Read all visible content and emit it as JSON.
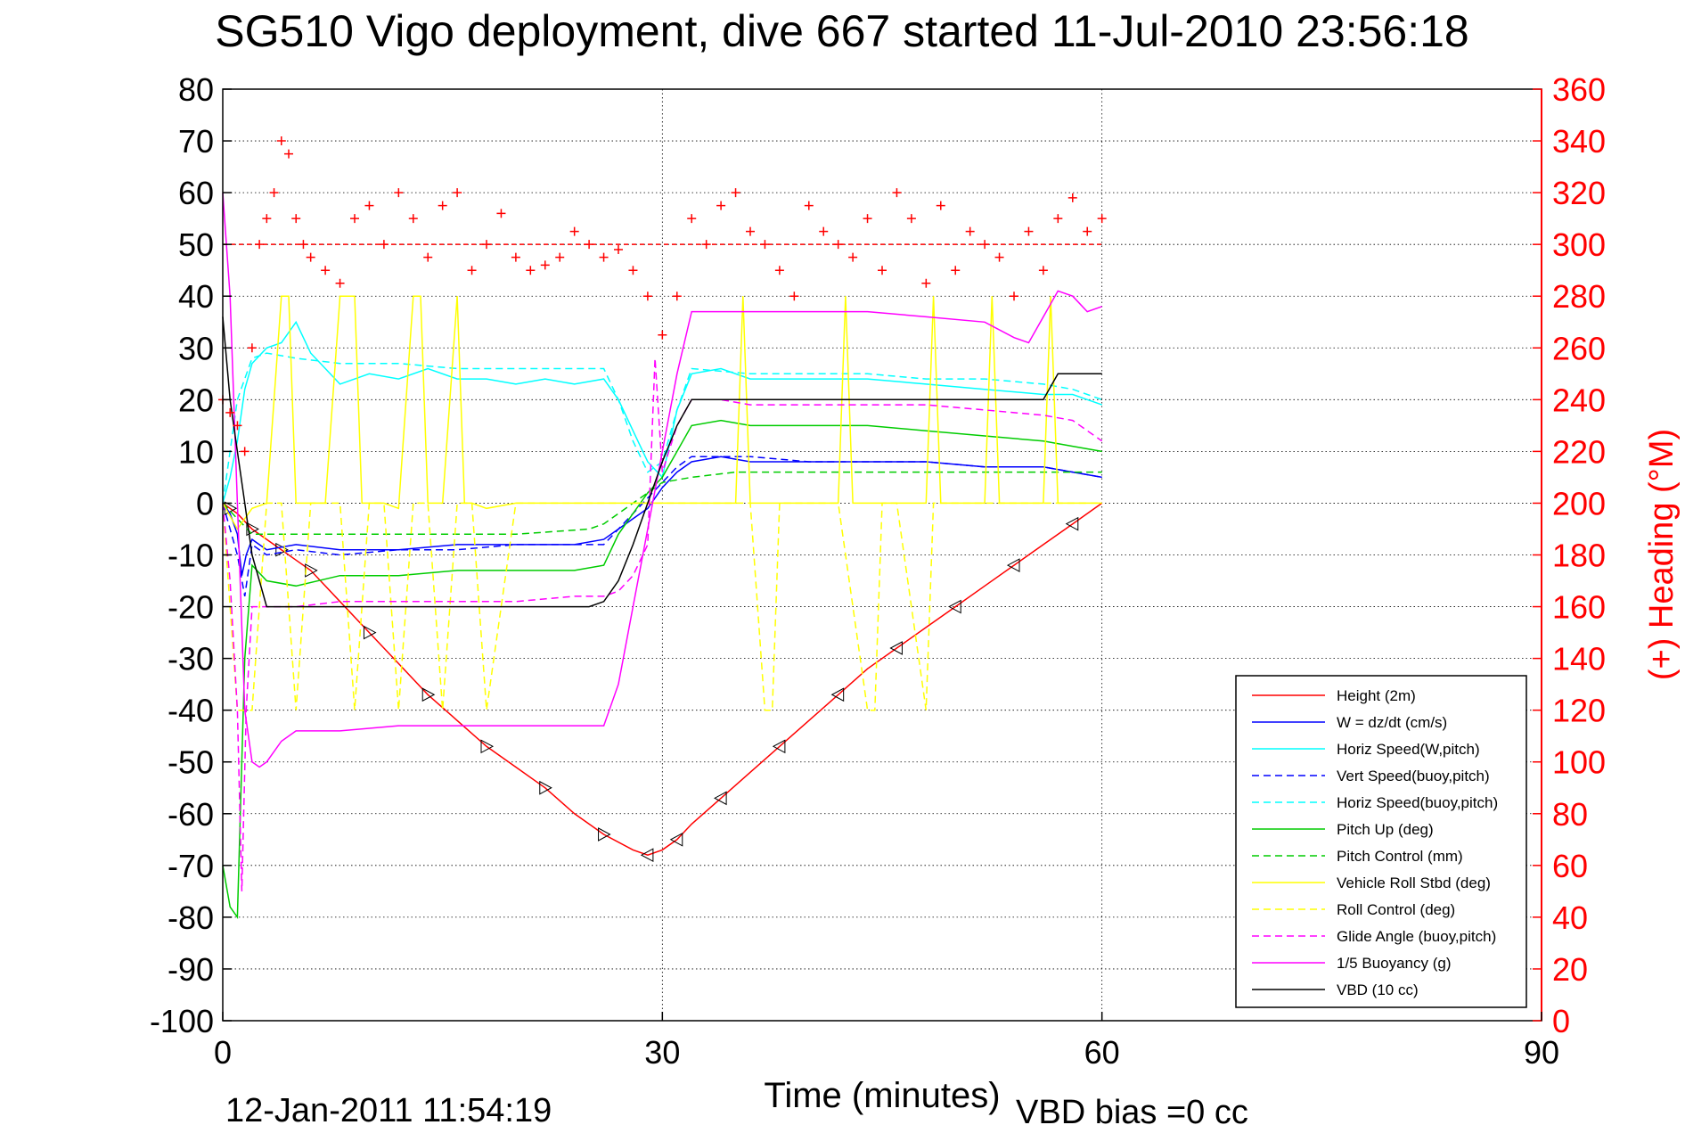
{
  "title": "SG510 Vigo deployment, dive 667 started 11-Jul-2010 23:56:18",
  "footer": {
    "timestamp": "12-Jan-2011 11:54:19",
    "vbd_bias": "VBD bias =0 cc"
  },
  "colors": {
    "axis_right": "#ff0000",
    "background": "#ffffff",
    "grid": "#000000"
  },
  "chart_data": {
    "type": "line",
    "xlabel": "Time (minutes)",
    "ylabel": "",
    "y2label": "(+) Heading (°M)",
    "xlim": [
      0,
      90
    ],
    "ylim": [
      -100,
      80
    ],
    "y2lim": [
      0,
      360
    ],
    "xticks": [
      "0",
      "30",
      "60",
      "90"
    ],
    "yticks": [
      "80",
      "70",
      "60",
      "50",
      "40",
      "30",
      "20",
      "10",
      "0",
      "-10",
      "-20",
      "-30",
      "-40",
      "-50",
      "-60",
      "-70",
      "-80",
      "-90",
      "-100"
    ],
    "y2ticks": [
      "360",
      "340",
      "320",
      "300",
      "280",
      "260",
      "240",
      "220",
      "200",
      "180",
      "160",
      "140",
      "120",
      "100",
      "80",
      "60",
      "40",
      "20",
      "0"
    ],
    "grid": "dotted, x at 30 and 60, y every 10",
    "legend_position": "lower-right",
    "legend": [
      {
        "name": "Height (2m)",
        "color": "#ff0000",
        "dash": "solid"
      },
      {
        "name": "W = dz/dt (cm/s)",
        "color": "#0000ff",
        "dash": "solid"
      },
      {
        "name": "Horiz Speed(W,pitch)",
        "color": "#00ffff",
        "dash": "solid"
      },
      {
        "name": "Vert Speed(buoy,pitch)",
        "color": "#0000ff",
        "dash": "dashed"
      },
      {
        "name": "Horiz Speed(buoy,pitch)",
        "color": "#00ffff",
        "dash": "dashed"
      },
      {
        "name": "Pitch Up (deg)",
        "color": "#00cc00",
        "dash": "solid"
      },
      {
        "name": "Pitch Control (mm)",
        "color": "#00cc00",
        "dash": "dashed"
      },
      {
        "name": "Vehicle Roll Stbd (deg)",
        "color": "#ffff00",
        "dash": "solid"
      },
      {
        "name": "Roll Control (deg)",
        "color": "#ffff00",
        "dash": "dashed"
      },
      {
        "name": "Glide Angle (buoy,pitch)",
        "color": "#ff00ff",
        "dash": "dashed"
      },
      {
        "name": "1/5 Buoyancy (g)",
        "color": "#ff00ff",
        "dash": "solid"
      },
      {
        "name": "VBD (10 cc)",
        "color": "#000000",
        "dash": "solid"
      }
    ],
    "series": [
      {
        "name": "Height (2m)",
        "axis": "left",
        "x": [
          0,
          0.5,
          1,
          2,
          3,
          4,
          5,
          6,
          8,
          10,
          12,
          14,
          16,
          18,
          20,
          22,
          24,
          26,
          28,
          29,
          30,
          31,
          32,
          34,
          36,
          38,
          40,
          42,
          44,
          46,
          48,
          50,
          52,
          54,
          56,
          58,
          60
        ],
        "y": [
          0,
          -1,
          -2,
          -5,
          -7,
          -9,
          -11,
          -13,
          -19,
          -25,
          -31,
          -37,
          -42,
          -47,
          -51,
          -55,
          -60,
          -64,
          -67,
          -68,
          -67,
          -65,
          -62,
          -57,
          -52,
          -47,
          -42,
          -37,
          -32,
          -28,
          -24,
          -20,
          -16,
          -12,
          -8,
          -4,
          0
        ]
      },
      {
        "name": "W = dz/dt (cm/s)",
        "axis": "left",
        "x": [
          0,
          0.5,
          1,
          1.3,
          1.6,
          2,
          3,
          5,
          8,
          12,
          16,
          20,
          24,
          26,
          27,
          28,
          29,
          30,
          31,
          32,
          34,
          36,
          40,
          44,
          48,
          52,
          56,
          58,
          60
        ],
        "y": [
          0,
          -2,
          -6,
          -14,
          -10,
          -7,
          -9,
          -8,
          -9,
          -9,
          -8,
          -8,
          -8,
          -7,
          -5,
          -3,
          -1,
          3,
          6,
          8,
          9,
          8,
          8,
          8,
          8,
          7,
          7,
          6,
          5
        ]
      },
      {
        "name": "Horiz Speed(W,pitch)",
        "axis": "left",
        "x": [
          0,
          0.5,
          1,
          1.5,
          2,
          3,
          4,
          5,
          6,
          8,
          10,
          12,
          14,
          16,
          18,
          20,
          22,
          24,
          26,
          27,
          28,
          29,
          30,
          31,
          32,
          34,
          36,
          40,
          44,
          48,
          52,
          56,
          58,
          60
        ],
        "y": [
          0,
          5,
          12,
          22,
          27,
          30,
          31,
          35,
          29,
          23,
          25,
          24,
          26,
          24,
          24,
          23,
          24,
          23,
          24,
          20,
          14,
          8,
          5,
          18,
          25,
          26,
          24,
          24,
          24,
          23,
          22,
          21,
          21,
          19
        ]
      },
      {
        "name": "Vert Speed(buoy,pitch)",
        "axis": "left",
        "x": [
          0,
          1,
          1.5,
          2,
          3,
          5,
          8,
          12,
          16,
          20,
          24,
          26,
          27,
          28,
          29,
          30,
          31,
          32,
          36,
          40,
          44,
          48,
          52,
          56,
          60
        ],
        "y": [
          0,
          -10,
          -18,
          -8,
          -10,
          -9,
          -10,
          -9,
          -9,
          -8,
          -8,
          -8,
          -5,
          -2,
          1,
          4,
          7,
          9,
          9,
          8,
          8,
          8,
          7,
          7,
          5
        ]
      },
      {
        "name": "Horiz Speed(buoy,pitch)",
        "axis": "left",
        "x": [
          0,
          1,
          2,
          3,
          5,
          8,
          12,
          16,
          20,
          24,
          26,
          27,
          28,
          29,
          30,
          31,
          32,
          36,
          40,
          44,
          48,
          52,
          56,
          58,
          60
        ],
        "y": [
          0,
          20,
          28,
          29,
          28,
          27,
          27,
          26,
          26,
          26,
          26,
          20,
          12,
          6,
          8,
          18,
          26,
          25,
          25,
          25,
          24,
          24,
          23,
          22,
          20
        ]
      },
      {
        "name": "Pitch Up (deg)",
        "axis": "left",
        "x": [
          0,
          0.5,
          1,
          1.2,
          1.5,
          2,
          3,
          5,
          8,
          12,
          16,
          20,
          24,
          26,
          27,
          28,
          29,
          30,
          31,
          32,
          34,
          36,
          40,
          44,
          48,
          52,
          56,
          58,
          60
        ],
        "y": [
          -70,
          -78,
          -80,
          -60,
          -30,
          -12,
          -15,
          -16,
          -14,
          -14,
          -13,
          -13,
          -13,
          -12,
          -6,
          -2,
          2,
          5,
          10,
          15,
          16,
          15,
          15,
          15,
          14,
          13,
          12,
          11,
          10
        ]
      },
      {
        "name": "Pitch Control (mm)",
        "axis": "left",
        "x": [
          0,
          1,
          2,
          5,
          10,
          15,
          20,
          25,
          26,
          27,
          28,
          29,
          30,
          32,
          35,
          40,
          45,
          50,
          55,
          58,
          60
        ],
        "y": [
          0,
          -3,
          -6,
          -6,
          -6,
          -6,
          -6,
          -5,
          -4,
          -2,
          0,
          2,
          4,
          5,
          6,
          6,
          6,
          6,
          6,
          6,
          6
        ]
      },
      {
        "name": "Vehicle Roll Stbd (deg)",
        "axis": "left",
        "x": [
          0,
          1,
          2,
          3,
          4,
          4.5,
          5,
          6,
          7,
          8,
          9,
          9.5,
          10,
          11,
          12,
          13,
          13.5,
          14,
          15,
          16,
          16.5,
          17,
          18,
          20,
          22,
          24,
          26,
          28,
          30,
          32,
          34,
          35,
          35.5,
          36,
          38,
          40,
          42,
          42.5,
          43,
          44,
          46,
          48,
          48.5,
          49,
          50,
          52,
          52.5,
          53,
          54,
          56,
          56.5,
          57,
          58,
          60
        ],
        "y": [
          0,
          -5,
          -1,
          0,
          40,
          40,
          0,
          0,
          0,
          40,
          40,
          0,
          0,
          0,
          -1,
          40,
          40,
          0,
          0,
          40,
          0,
          0,
          -1,
          0,
          0,
          0,
          0,
          0,
          0,
          0,
          0,
          0,
          40,
          0,
          0,
          0,
          0,
          40,
          0,
          0,
          0,
          0,
          40,
          0,
          0,
          0,
          40,
          0,
          0,
          0,
          40,
          0,
          0,
          0
        ]
      },
      {
        "name": "Roll Control (deg)",
        "axis": "left",
        "x": [
          0,
          1,
          2,
          3,
          4,
          5,
          6,
          7,
          8,
          9,
          10,
          11,
          12,
          13,
          14,
          15,
          16,
          17,
          18,
          20,
          22,
          24,
          26,
          28,
          30,
          32,
          34,
          36,
          37,
          37.5,
          38,
          40,
          42,
          44,
          44.5,
          45,
          46,
          48,
          48.5,
          49,
          50,
          52,
          54,
          56,
          58,
          60
        ],
        "y": [
          0,
          -40,
          -40,
          0,
          0,
          -40,
          0,
          0,
          0,
          -40,
          0,
          0,
          -40,
          0,
          0,
          -40,
          0,
          0,
          -40,
          0,
          0,
          0,
          0,
          0,
          0,
          0,
          0,
          0,
          -40,
          -40,
          0,
          0,
          0,
          -40,
          -40,
          0,
          0,
          -40,
          0,
          0,
          0,
          0,
          0,
          0,
          0,
          0
        ]
      },
      {
        "name": "Glide Angle (buoy,pitch)",
        "axis": "left",
        "x": [
          0,
          0.5,
          1,
          1.3,
          1.6,
          2,
          3,
          5,
          8,
          12,
          16,
          20,
          24,
          26,
          27,
          28,
          29,
          29.5,
          30,
          31,
          32,
          34,
          36,
          40,
          44,
          48,
          52,
          56,
          58,
          60
        ],
        "y": [
          0,
          -15,
          -40,
          -75,
          -40,
          -20,
          -20,
          -20,
          -19,
          -19,
          -19,
          -19,
          -18,
          -18,
          -17,
          -14,
          -8,
          28,
          6,
          15,
          20,
          20,
          19,
          19,
          19,
          19,
          18,
          17,
          16,
          12
        ]
      },
      {
        "name": "1/5 Buoyancy (g)",
        "axis": "left",
        "x": [
          0,
          0.5,
          1,
          1.5,
          2,
          2.5,
          3,
          4,
          5,
          8,
          12,
          16,
          20,
          24,
          26,
          27,
          28,
          29,
          30,
          31,
          32,
          36,
          40,
          44,
          48,
          52,
          54,
          55,
          56,
          57,
          58,
          59,
          60
        ],
        "y": [
          60,
          40,
          0,
          -40,
          -50,
          -51,
          -50,
          -46,
          -44,
          -44,
          -43,
          -43,
          -43,
          -43,
          -43,
          -35,
          -20,
          -5,
          10,
          25,
          37,
          37,
          37,
          37,
          36,
          35,
          32,
          31,
          36,
          41,
          40,
          37,
          38
        ]
      },
      {
        "name": "VBD (10 cc)",
        "axis": "left",
        "x": [
          0,
          0.5,
          1,
          1.5,
          2,
          3,
          5,
          10,
          15,
          20,
          25,
          26,
          27,
          28,
          29,
          30,
          31,
          32,
          35,
          40,
          45,
          50,
          55,
          56,
          57,
          58,
          60
        ],
        "y": [
          36,
          20,
          10,
          0,
          -10,
          -20,
          -20,
          -20,
          -20,
          -20,
          -20,
          -19,
          -15,
          -8,
          0,
          8,
          15,
          20,
          20,
          20,
          20,
          20,
          20,
          20,
          25,
          25,
          25
        ]
      },
      {
        "name": "(+) Heading (°M)",
        "axis": "right",
        "style": "markers",
        "x": [
          0,
          0.5,
          1,
          1.5,
          2,
          2.5,
          3,
          3.5,
          4,
          4.5,
          5,
          5.5,
          6,
          7,
          8,
          9,
          10,
          11,
          12,
          13,
          14,
          15,
          16,
          17,
          18,
          19,
          20,
          21,
          22,
          23,
          24,
          25,
          26,
          27,
          28,
          29,
          30,
          31,
          32,
          33,
          34,
          35,
          36,
          37,
          38,
          39,
          40,
          41,
          42,
          43,
          44,
          45,
          46,
          47,
          48,
          49,
          50,
          51,
          52,
          53,
          54,
          55,
          56,
          57,
          58,
          59,
          60
        ],
        "y": [
          240,
          235,
          230,
          220,
          260,
          300,
          310,
          320,
          340,
          335,
          310,
          300,
          295,
          290,
          285,
          310,
          315,
          300,
          320,
          310,
          295,
          315,
          320,
          290,
          300,
          312,
          295,
          290,
          292,
          295,
          305,
          300,
          295,
          298,
          290,
          280,
          265,
          280,
          310,
          300,
          315,
          320,
          305,
          300,
          290,
          280,
          315,
          305,
          300,
          295,
          310,
          290,
          320,
          310,
          285,
          315,
          290,
          305,
          300,
          295,
          280,
          305,
          290,
          310,
          318,
          305,
          310
        ]
      }
    ]
  }
}
